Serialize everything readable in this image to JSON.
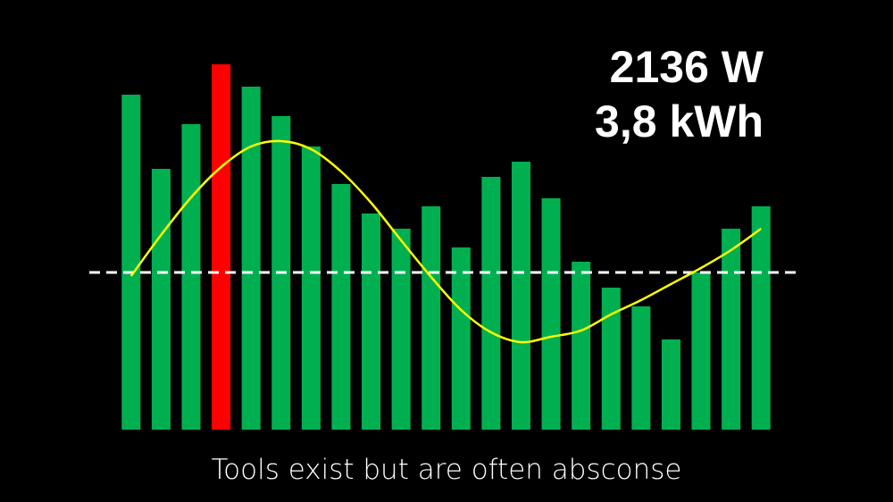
{
  "chart_data": {
    "type": "bar",
    "headline": [
      "2136 W",
      "3,8 kWh"
    ],
    "caption": "Tools exist but are often absconse",
    "categories": [
      null,
      null,
      null,
      null,
      null,
      null,
      null,
      null,
      null,
      null,
      null,
      null,
      null,
      null,
      null,
      null,
      null,
      null,
      null,
      null,
      null,
      null
    ],
    "values": [
      375,
      292,
      342,
      409,
      384,
      351,
      317,
      275,
      242,
      225,
      250,
      204,
      283,
      300,
      259,
      188,
      159,
      138,
      101,
      176,
      225,
      250
    ],
    "colors": [
      "#00b050",
      "#00b050",
      "#00b050",
      "#ff0000",
      "#00b050",
      "#00b050",
      "#00b050",
      "#00b050",
      "#00b050",
      "#00b050",
      "#00b050",
      "#00b050",
      "#00b050",
      "#00b050",
      "#00b050",
      "#00b050",
      "#00b050",
      "#00b050",
      "#00b050",
      "#00b050",
      "#00b050",
      "#00b050"
    ],
    "trend": {
      "color": "#ffff00",
      "values": [
        172,
        218,
        260,
        294,
        317,
        323,
        314,
        289,
        254,
        212,
        171,
        134,
        109,
        98,
        104,
        111,
        129,
        145,
        163,
        181,
        201,
        225
      ]
    },
    "reference_line": {
      "value": 176,
      "color": "#ffffff"
    },
    "ylim": [
      0,
      410
    ]
  }
}
